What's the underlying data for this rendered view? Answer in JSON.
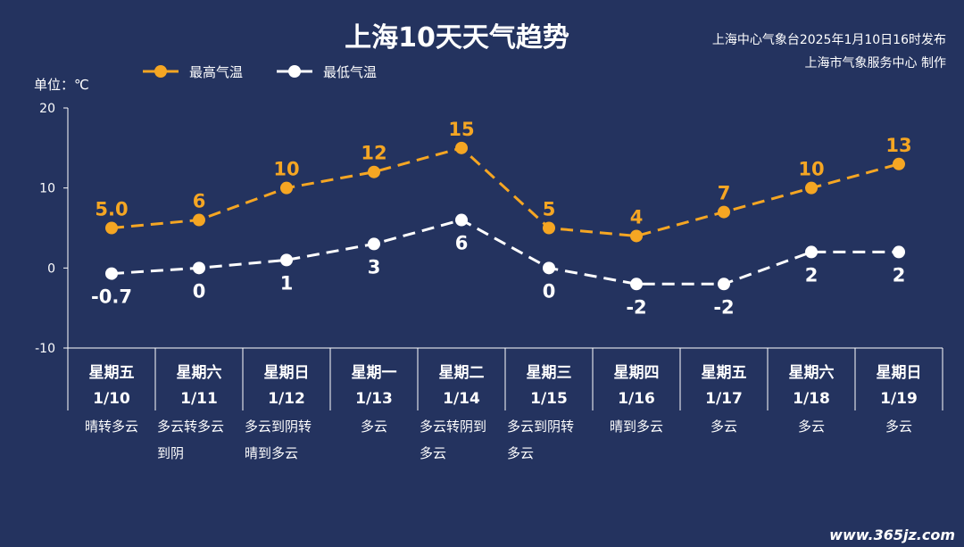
{
  "title": "上海10天天气趋势",
  "publisher_line1": "上海中心气象台2025年1月10日16时发布",
  "publisher_line2": "上海市气象服务中心 制作",
  "watermark": "www.365jz.com",
  "colors": {
    "background": "#24335f",
    "high": "#f5a623",
    "low": "#ffffff"
  },
  "chart_data": {
    "type": "line",
    "title": "上海10天天气趋势",
    "ylabel": "单位：℃",
    "ylim": [
      -10,
      20
    ],
    "yticks": [
      20,
      10,
      0,
      -10
    ],
    "grid": false,
    "legend_position": "top-left",
    "categories": [
      "1/10",
      "1/11",
      "1/12",
      "1/13",
      "1/14",
      "1/15",
      "1/16",
      "1/17",
      "1/18",
      "1/19"
    ],
    "weekdays": [
      "星期五",
      "星期六",
      "星期日",
      "星期一",
      "星期二",
      "星期三",
      "星期四",
      "星期五",
      "星期六",
      "星期日"
    ],
    "weather": [
      [
        "晴转多云"
      ],
      [
        "多云转多云",
        "到阴"
      ],
      [
        "多云到阴转",
        "晴到多云"
      ],
      [
        "多云"
      ],
      [
        "多云转阴到",
        "多云"
      ],
      [
        "多云到阴转",
        "多云"
      ],
      [
        "晴到多云"
      ],
      [
        "多云"
      ],
      [
        "多云"
      ],
      [
        "多云"
      ]
    ],
    "series": [
      {
        "name": "最高气温",
        "color": "#f5a623",
        "values": [
          5.0,
          6,
          10,
          12,
          15,
          5,
          4,
          7,
          10,
          13
        ],
        "labels": [
          "5.0",
          "6",
          "10",
          "12",
          "15",
          "5",
          "4",
          "7",
          "10",
          "13"
        ]
      },
      {
        "name": "最低气温",
        "color": "#ffffff",
        "values": [
          -0.7,
          0,
          1,
          3,
          6,
          0,
          -2,
          -2,
          2,
          2
        ],
        "labels": [
          "-0.7",
          "0",
          "1",
          "3",
          "6",
          "0",
          "-2",
          "-2",
          "2",
          "2"
        ]
      }
    ]
  }
}
